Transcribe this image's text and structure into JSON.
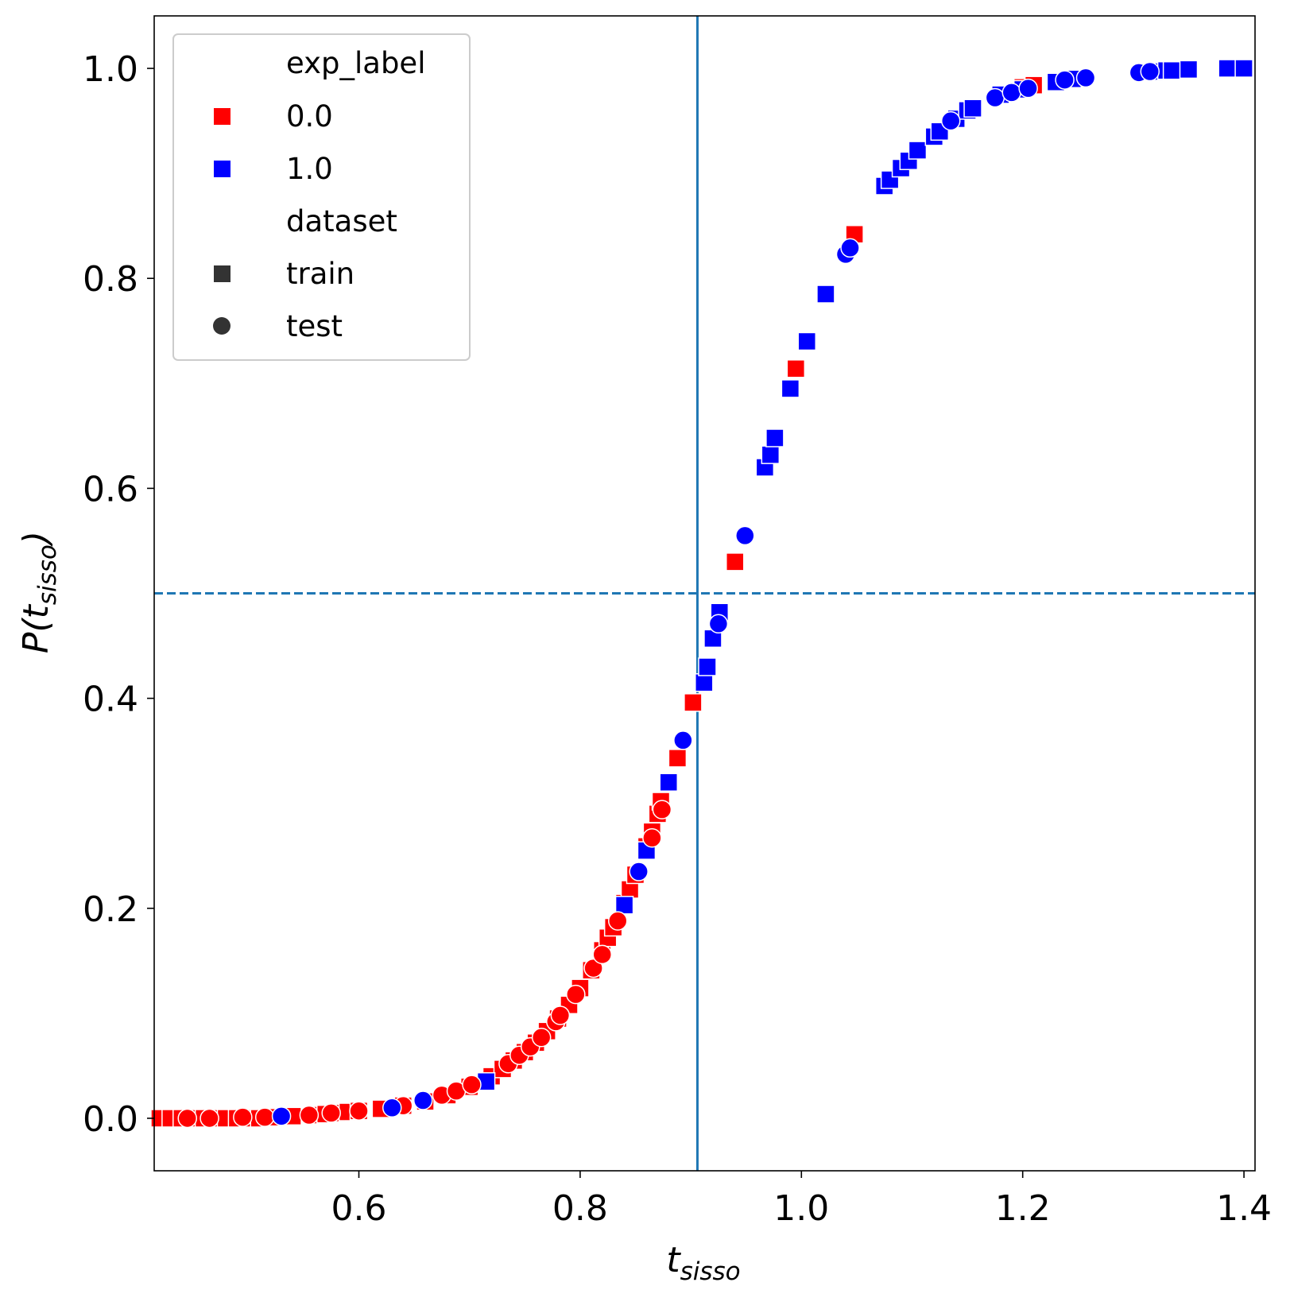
{
  "chart_data": {
    "type": "scatter",
    "xlabel": "t",
    "xlabel_sub": "sisso",
    "ylabel": "P(t",
    "ylabel_sub": "sisso",
    "ylabel_close": ")",
    "xlim": [
      0.415,
      1.41
    ],
    "ylim": [
      -0.05,
      1.05
    ],
    "xticks": [
      0.6,
      0.8,
      1.0,
      1.2,
      1.4
    ],
    "xtick_labels": [
      "0.6",
      "0.8",
      "1.0",
      "1.2",
      "1.4"
    ],
    "yticks": [
      0.0,
      0.2,
      0.4,
      0.6,
      0.8,
      1.0
    ],
    "ytick_labels": [
      "0.0",
      "0.2",
      "0.4",
      "0.6",
      "0.8",
      "1.0"
    ],
    "grid": false,
    "reference_lines": [
      {
        "orientation": "vertical",
        "value": 0.906,
        "style": "solid",
        "color": "#1f77b4"
      },
      {
        "orientation": "horizontal",
        "value": 0.5,
        "style": "dashed",
        "color": "#1f77b4"
      }
    ],
    "legend": {
      "placement": "upper-left",
      "hue_title": "exp_label",
      "hue_entries": [
        {
          "label": "0.0",
          "color": "#ff0000"
        },
        {
          "label": "1.0",
          "color": "#0000ff"
        }
      ],
      "style_title": "dataset",
      "style_entries": [
        {
          "label": "train",
          "marker": "square"
        },
        {
          "label": "test",
          "marker": "circle"
        }
      ]
    },
    "series": [
      {
        "exp_label": "0.0",
        "dataset": "train",
        "color": "#ff0000",
        "marker": "square",
        "points": [
          [
            0.42,
            0.0
          ],
          [
            0.43,
            0.0
          ],
          [
            0.44,
            0.0
          ],
          [
            0.45,
            0.0
          ],
          [
            0.46,
            0.0
          ],
          [
            0.47,
            0.0
          ],
          [
            0.48,
            0.0
          ],
          [
            0.49,
            0.0
          ],
          [
            0.5,
            0.0
          ],
          [
            0.51,
            0.0
          ],
          [
            0.52,
            0.001
          ],
          [
            0.54,
            0.002
          ],
          [
            0.56,
            0.003
          ],
          [
            0.57,
            0.004
          ],
          [
            0.58,
            0.005
          ],
          [
            0.59,
            0.006
          ],
          [
            0.6,
            0.007
          ],
          [
            0.62,
            0.009
          ],
          [
            0.64,
            0.012
          ],
          [
            0.66,
            0.016
          ],
          [
            0.68,
            0.022
          ],
          [
            0.7,
            0.03
          ],
          [
            0.72,
            0.04
          ],
          [
            0.73,
            0.047
          ],
          [
            0.74,
            0.055
          ],
          [
            0.75,
            0.063
          ],
          [
            0.76,
            0.072
          ],
          [
            0.77,
            0.083
          ],
          [
            0.78,
            0.095
          ],
          [
            0.79,
            0.108
          ],
          [
            0.8,
            0.124
          ],
          [
            0.81,
            0.141
          ],
          [
            0.82,
            0.16
          ],
          [
            0.825,
            0.172
          ],
          [
            0.83,
            0.182
          ],
          [
            0.84,
            0.205
          ],
          [
            0.845,
            0.218
          ],
          [
            0.85,
            0.232
          ],
          [
            0.86,
            0.259
          ],
          [
            0.865,
            0.273
          ],
          [
            0.87,
            0.29
          ],
          [
            0.873,
            0.302
          ],
          [
            0.888,
            0.343
          ],
          [
            0.902,
            0.396
          ],
          [
            0.94,
            0.53
          ],
          [
            0.995,
            0.714
          ],
          [
            1.048,
            0.842
          ],
          [
            1.2,
            0.982
          ],
          [
            1.21,
            0.984
          ]
        ]
      },
      {
        "exp_label": "1.0",
        "dataset": "train",
        "color": "#0000ff",
        "marker": "square",
        "points": [
          [
            0.715,
            0.035
          ],
          [
            0.84,
            0.203
          ],
          [
            0.86,
            0.255
          ],
          [
            0.88,
            0.32
          ],
          [
            0.912,
            0.415
          ],
          [
            0.915,
            0.43
          ],
          [
            0.92,
            0.457
          ],
          [
            0.926,
            0.482
          ],
          [
            0.967,
            0.62
          ],
          [
            0.972,
            0.632
          ],
          [
            0.976,
            0.648
          ],
          [
            0.99,
            0.695
          ],
          [
            1.005,
            0.74
          ],
          [
            1.022,
            0.785
          ],
          [
            1.075,
            0.888
          ],
          [
            1.08,
            0.894
          ],
          [
            1.09,
            0.905
          ],
          [
            1.097,
            0.912
          ],
          [
            1.105,
            0.922
          ],
          [
            1.12,
            0.935
          ],
          [
            1.125,
            0.94
          ],
          [
            1.14,
            0.952
          ],
          [
            1.15,
            0.96
          ],
          [
            1.155,
            0.962
          ],
          [
            1.18,
            0.975
          ],
          [
            1.2,
            0.98
          ],
          [
            1.23,
            0.987
          ],
          [
            1.245,
            0.99
          ],
          [
            1.32,
            0.997
          ],
          [
            1.33,
            0.998
          ],
          [
            1.335,
            0.998
          ],
          [
            1.35,
            0.999
          ],
          [
            1.385,
            1.0
          ],
          [
            1.4,
            1.0
          ]
        ]
      },
      {
        "exp_label": "0.0",
        "dataset": "test",
        "color": "#ff0000",
        "marker": "circle",
        "points": [
          [
            0.445,
            0.0
          ],
          [
            0.465,
            0.0
          ],
          [
            0.495,
            0.001
          ],
          [
            0.515,
            0.001
          ],
          [
            0.555,
            0.003
          ],
          [
            0.575,
            0.005
          ],
          [
            0.6,
            0.007
          ],
          [
            0.64,
            0.012
          ],
          [
            0.675,
            0.022
          ],
          [
            0.688,
            0.026
          ],
          [
            0.702,
            0.032
          ],
          [
            0.735,
            0.052
          ],
          [
            0.745,
            0.06
          ],
          [
            0.755,
            0.068
          ],
          [
            0.765,
            0.077
          ],
          [
            0.778,
            0.092
          ],
          [
            0.782,
            0.098
          ],
          [
            0.796,
            0.118
          ],
          [
            0.812,
            0.143
          ],
          [
            0.82,
            0.156
          ],
          [
            0.834,
            0.188
          ],
          [
            0.865,
            0.267
          ],
          [
            0.874,
            0.294
          ]
        ]
      },
      {
        "exp_label": "1.0",
        "dataset": "test",
        "color": "#0000ff",
        "marker": "circle",
        "points": [
          [
            0.53,
            0.002
          ],
          [
            0.63,
            0.01
          ],
          [
            0.658,
            0.017
          ],
          [
            0.853,
            0.235
          ],
          [
            0.893,
            0.36
          ],
          [
            0.925,
            0.471
          ],
          [
            0.949,
            0.555
          ],
          [
            1.04,
            0.823
          ],
          [
            1.044,
            0.829
          ],
          [
            1.135,
            0.95
          ],
          [
            1.175,
            0.972
          ],
          [
            1.19,
            0.977
          ],
          [
            1.205,
            0.981
          ],
          [
            1.238,
            0.989
          ],
          [
            1.257,
            0.991
          ],
          [
            1.305,
            0.996
          ],
          [
            1.315,
            0.997
          ]
        ]
      }
    ]
  }
}
